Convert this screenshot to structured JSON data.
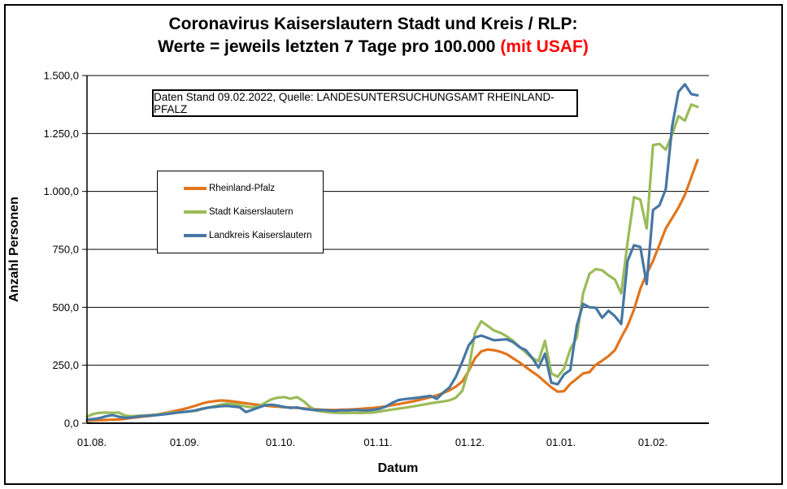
{
  "title": {
    "line1": "Coronavirus Kaiserslautern Stadt und Kreis / RLP:",
    "line2_black": "Werte = jeweils letzten 7 Tage pro 100.000 ",
    "line2_red": "(mit USAF)"
  },
  "info_box": "Daten Stand 09.02.2022, Quelle: LANDESUNTERSUCHUNGSAMT RHEINLAND-PFALZ",
  "axes": {
    "y_title": "Anzahl Personen",
    "x_title": "Datum",
    "y_tick_labels_top_down": [
      "1.500,0",
      "1.250,0",
      "1.000,0",
      "750,0",
      "500,0",
      "250,0",
      "0,0"
    ],
    "x_tick_labels": [
      "01.08.",
      "01.09.",
      "01.10.",
      "01.11.",
      "01.12.",
      "01.01.",
      "01.02."
    ]
  },
  "chart_data": {
    "type": "line",
    "title": "Coronavirus Kaiserslautern Stadt und Kreis / RLP: Werte = jeweils letzten 7 Tage pro 100.000 (mit USAF)",
    "xlabel": "Datum",
    "ylabel": "Anzahl Personen",
    "ylim": [
      0,
      1500
    ],
    "y_tick_step": 250,
    "grid": "horizontal",
    "legend_position": "left-middle-box",
    "sampling_note": "7-day incidence per 100.000, sampled ~every 2 days from 01.08.2021 to 09.02.2022 (Daten Stand 09.02.2022)",
    "dates": [
      "01.08.",
      "03.08.",
      "05.08.",
      "07.08.",
      "09.08.",
      "11.08.",
      "13.08.",
      "15.08.",
      "17.08.",
      "19.08.",
      "21.08.",
      "23.08.",
      "25.08.",
      "27.08.",
      "29.08.",
      "31.08.",
      "02.09.",
      "04.09.",
      "06.09.",
      "08.09.",
      "10.09.",
      "12.09.",
      "14.09.",
      "16.09.",
      "18.09.",
      "20.09.",
      "22.09.",
      "24.09.",
      "26.09.",
      "28.09.",
      "30.09.",
      "02.10.",
      "04.10.",
      "06.10.",
      "08.10.",
      "10.10.",
      "12.10.",
      "14.10.",
      "16.10.",
      "18.10.",
      "20.10.",
      "22.10.",
      "24.10.",
      "26.10.",
      "28.10.",
      "30.10.",
      "01.11.",
      "03.11.",
      "05.11.",
      "07.11.",
      "09.11.",
      "11.11.",
      "13.11.",
      "15.11.",
      "17.11.",
      "19.11.",
      "21.11.",
      "23.11.",
      "25.11.",
      "27.11.",
      "29.11.",
      "01.12.",
      "03.12.",
      "05.12.",
      "07.12.",
      "09.12.",
      "11.12.",
      "13.12.",
      "15.12.",
      "17.12.",
      "19.12.",
      "21.12.",
      "23.12.",
      "25.12.",
      "27.12.",
      "29.12.",
      "31.12.",
      "02.01.",
      "04.01.",
      "06.01.",
      "08.01.",
      "10.01.",
      "12.01.",
      "14.01.",
      "16.01.",
      "18.01.",
      "20.01.",
      "22.01.",
      "24.01.",
      "26.01.",
      "28.01.",
      "30.01.",
      "01.02.",
      "03.02.",
      "05.02.",
      "07.02.",
      "09.02."
    ],
    "series": [
      {
        "name": "Rheinland-Pfalz",
        "color": "#E1751D",
        "values": [
          10,
          12,
          13,
          14,
          15,
          16,
          19,
          23,
          26,
          29,
          32,
          37,
          43,
          48,
          54,
          60,
          67,
          75,
          84,
          91,
          95,
          98,
          97,
          94,
          90,
          86,
          82,
          79,
          76,
          73,
          71,
          69,
          68,
          66,
          64,
          62,
          60,
          58,
          57,
          57,
          58,
          59,
          60,
          62,
          64,
          66,
          69,
          73,
          78,
          82,
          88,
          93,
          99,
          105,
          112,
          120,
          130,
          142,
          158,
          180,
          225,
          280,
          310,
          318,
          315,
          308,
          298,
          280,
          262,
          242,
          222,
          203,
          178,
          155,
          136,
          138,
          170,
          192,
          215,
          220,
          252,
          270,
          290,
          315,
          370,
          420,
          490,
          580,
          645,
          700,
          770,
          840,
          885,
          930,
          985,
          1060,
          1135
        ]
      },
      {
        "name": "Stadt Kaiserslautern",
        "color": "#9BBB59",
        "values": [
          28,
          40,
          45,
          46,
          45,
          46,
          33,
          30,
          32,
          34,
          35,
          38,
          41,
          44,
          47,
          48,
          50,
          53,
          60,
          67,
          73,
          80,
          85,
          83,
          78,
          72,
          68,
          73,
          88,
          103,
          110,
          113,
          106,
          113,
          96,
          72,
          55,
          50,
          47,
          45,
          44,
          44,
          45,
          44,
          45,
          46,
          50,
          55,
          59,
          63,
          67,
          71,
          76,
          81,
          86,
          90,
          94,
          99,
          110,
          140,
          230,
          390,
          440,
          420,
          400,
          390,
          375,
          355,
          330,
          305,
          280,
          268,
          355,
          215,
          200,
          235,
          320,
          370,
          560,
          645,
          665,
          660,
          638,
          620,
          560,
          780,
          975,
          965,
          840,
          1200,
          1205,
          1180,
          1245,
          1325,
          1305,
          1375,
          1365
        ]
      },
      {
        "name": "Landkreis Kaiserslautern",
        "color": "#4677A4",
        "values": [
          15,
          18,
          22,
          30,
          35,
          28,
          23,
          25,
          29,
          31,
          33,
          35,
          38,
          41,
          45,
          48,
          51,
          55,
          62,
          67,
          70,
          73,
          75,
          72,
          69,
          48,
          58,
          68,
          77,
          80,
          76,
          70,
          66,
          68,
          62,
          59,
          56,
          57,
          55,
          53,
          56,
          55,
          57,
          56,
          55,
          58,
          62,
          72,
          88,
          100,
          104,
          107,
          110,
          114,
          118,
          105,
          132,
          155,
          200,
          265,
          335,
          370,
          378,
          368,
          358,
          360,
          362,
          350,
          328,
          315,
          282,
          240,
          300,
          175,
          168,
          210,
          230,
          420,
          515,
          500,
          498,
          455,
          485,
          462,
          428,
          700,
          768,
          760,
          600,
          920,
          940,
          1010,
          1280,
          1430,
          1462,
          1420,
          1415
        ]
      }
    ]
  }
}
